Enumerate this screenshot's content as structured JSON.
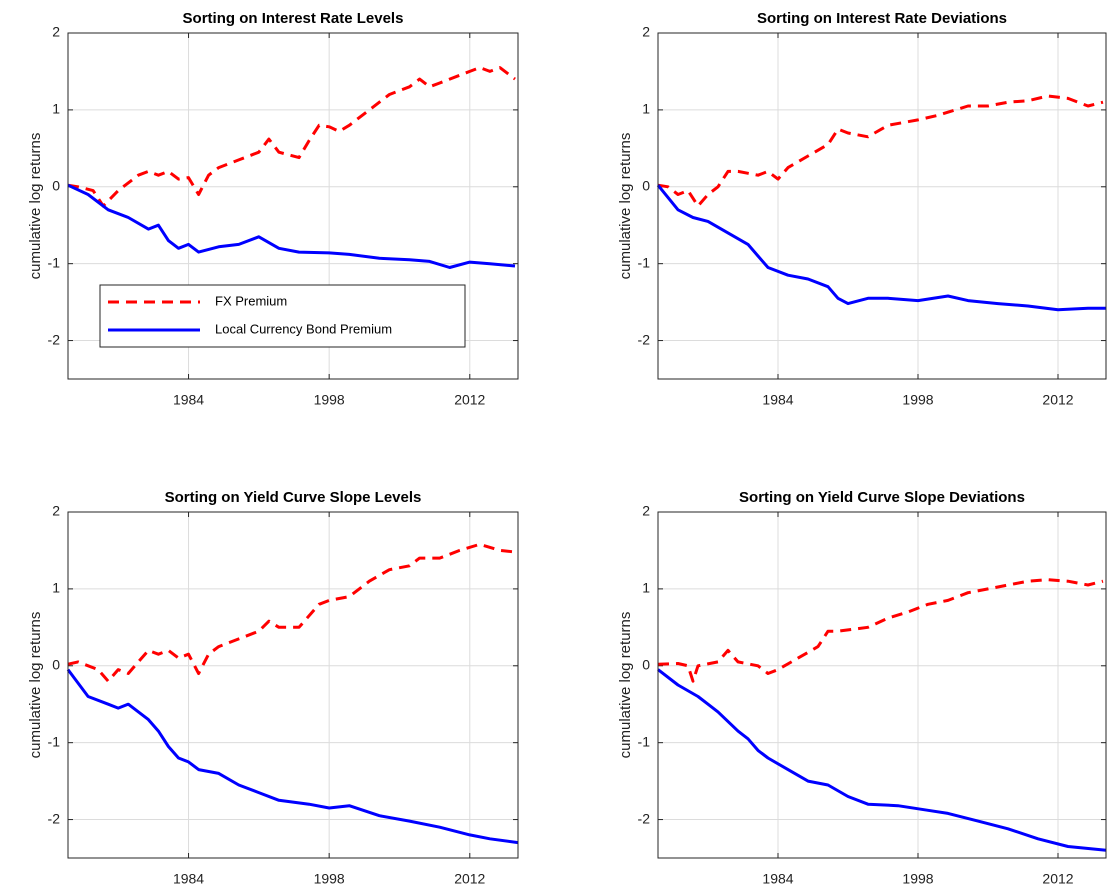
{
  "chart_data": [
    {
      "type": "line",
      "title": "Sorting on Interest Rate Levels",
      "y_label": "cumulative log returns",
      "xlim": [
        1972,
        2016.8
      ],
      "ylim": [
        -2.5,
        2
      ],
      "xticks": [
        1984,
        1998,
        2012
      ],
      "yticks": [
        -2,
        -1,
        0,
        1,
        2
      ],
      "grid": true,
      "legend": "lower left",
      "series": [
        {
          "name": "FX Premium",
          "color": "#ff0000",
          "dash": "dashed",
          "x": [
            1972,
            1973,
            1974.5,
            1975.5,
            1977,
            1979,
            1980,
            1981,
            1982,
            1983,
            1984,
            1985,
            1986,
            1987,
            1989,
            1991,
            1992,
            1993,
            1995,
            1996,
            1997,
            1998,
            1999,
            2000,
            2002,
            2004,
            2006,
            2007,
            2008,
            2009,
            2010,
            2012,
            2013,
            2014,
            2015,
            2016.5
          ],
          "values": [
            0.02,
            0.0,
            -0.05,
            -0.25,
            -0.05,
            0.15,
            0.2,
            0.15,
            0.2,
            0.1,
            0.12,
            -0.1,
            0.15,
            0.25,
            0.35,
            0.45,
            0.62,
            0.45,
            0.38,
            0.6,
            0.8,
            0.78,
            0.72,
            0.8,
            1.0,
            1.2,
            1.3,
            1.4,
            1.3,
            1.35,
            1.4,
            1.5,
            1.55,
            1.5,
            1.55,
            1.4
          ]
        },
        {
          "name": "Local Currency Bond Premium",
          "color": "#0000ff",
          "dash": "solid",
          "x": [
            1972,
            1974,
            1976,
            1978,
            1980,
            1981,
            1982,
            1983,
            1984,
            1985,
            1987,
            1989,
            1991,
            1993,
            1995,
            1998,
            2000,
            2003,
            2006,
            2008,
            2010,
            2012,
            2014,
            2016.5
          ],
          "values": [
            0.02,
            -0.1,
            -0.3,
            -0.4,
            -0.55,
            -0.5,
            -0.7,
            -0.8,
            -0.75,
            -0.85,
            -0.78,
            -0.75,
            -0.65,
            -0.8,
            -0.85,
            -0.86,
            -0.88,
            -0.93,
            -0.95,
            -0.97,
            -1.05,
            -0.98,
            -1.0,
            -1.03
          ]
        }
      ]
    },
    {
      "type": "line",
      "title": "Sorting on Interest Rate Deviations",
      "y_label": "cumulative log returns",
      "xlim": [
        1972,
        2016.8
      ],
      "ylim": [
        -2.5,
        2
      ],
      "xticks": [
        1984,
        1998,
        2012
      ],
      "yticks": [
        -2,
        -1,
        0,
        1,
        2
      ],
      "grid": true,
      "series": [
        {
          "color": "#ff0000",
          "dash": "dashed",
          "x": [
            1972,
            1973,
            1974,
            1975,
            1976,
            1977,
            1978,
            1979,
            1980,
            1982,
            1983,
            1984,
            1985,
            1987,
            1989,
            1990,
            1991,
            1993,
            1995,
            1998,
            2000,
            2003,
            2005,
            2007,
            2009,
            2011,
            2013,
            2015,
            2016.5
          ],
          "values": [
            0.02,
            0.0,
            -0.1,
            -0.05,
            -0.25,
            -0.1,
            0.0,
            0.2,
            0.2,
            0.15,
            0.2,
            0.1,
            0.25,
            0.4,
            0.55,
            0.75,
            0.7,
            0.65,
            0.8,
            0.87,
            0.93,
            1.05,
            1.05,
            1.1,
            1.12,
            1.18,
            1.15,
            1.05,
            1.1
          ]
        },
        {
          "color": "#0000ff",
          "dash": "solid",
          "x": [
            1972,
            1974,
            1975.5,
            1977,
            1979,
            1981,
            1982,
            1983,
            1985,
            1987,
            1989,
            1990,
            1991,
            1993,
            1995,
            1998,
            2001,
            2003,
            2006,
            2009,
            2012,
            2015,
            2016.8
          ],
          "values": [
            0.02,
            -0.3,
            -0.4,
            -0.45,
            -0.6,
            -0.75,
            -0.9,
            -1.05,
            -1.15,
            -1.2,
            -1.3,
            -1.45,
            -1.52,
            -1.45,
            -1.45,
            -1.48,
            -1.42,
            -1.48,
            -1.52,
            -1.55,
            -1.6,
            -1.58,
            -1.58
          ]
        }
      ]
    },
    {
      "type": "line",
      "title": "Sorting on Yield Curve Slope Levels",
      "y_label": "cumulative log returns",
      "xlim": [
        1972,
        2016.8
      ],
      "ylim": [
        -2.5,
        2
      ],
      "xticks": [
        1984,
        1998,
        2012
      ],
      "yticks": [
        -2,
        -1,
        0,
        1,
        2
      ],
      "grid": true,
      "series": [
        {
          "color": "#ff0000",
          "dash": "dashed",
          "x": [
            1972,
            1973,
            1975,
            1976,
            1977,
            1978,
            1979,
            1980,
            1981,
            1982,
            1983,
            1984,
            1985,
            1986,
            1987,
            1989,
            1991,
            1992,
            1993,
            1995,
            1997,
            1998,
            2000,
            2002,
            2004,
            2006,
            2007,
            2009,
            2011,
            2013,
            2015,
            2016.5
          ],
          "values": [
            0.02,
            0.05,
            -0.05,
            -0.2,
            -0.05,
            -0.1,
            0.05,
            0.2,
            0.15,
            0.2,
            0.1,
            0.15,
            -0.1,
            0.15,
            0.25,
            0.35,
            0.45,
            0.58,
            0.5,
            0.5,
            0.8,
            0.85,
            0.9,
            1.1,
            1.25,
            1.3,
            1.4,
            1.4,
            1.5,
            1.58,
            1.5,
            1.48
          ]
        },
        {
          "color": "#0000ff",
          "dash": "solid",
          "x": [
            1972,
            1974,
            1976,
            1977,
            1978,
            1980,
            1981,
            1982,
            1983,
            1984,
            1985,
            1987,
            1989,
            1991,
            1993,
            1996,
            1998,
            2000,
            2003,
            2006,
            2009,
            2012,
            2014,
            2016.8
          ],
          "values": [
            -0.05,
            -0.4,
            -0.5,
            -0.55,
            -0.5,
            -0.7,
            -0.85,
            -1.05,
            -1.2,
            -1.25,
            -1.35,
            -1.4,
            -1.55,
            -1.65,
            -1.75,
            -1.8,
            -1.85,
            -1.82,
            -1.95,
            -2.02,
            -2.1,
            -2.2,
            -2.25,
            -2.3
          ]
        }
      ]
    },
    {
      "type": "line",
      "title": "Sorting on Yield Curve Slope Deviations",
      "y_label": "cumulative log returns",
      "xlim": [
        1972,
        2016.8
      ],
      "ylim": [
        -2.5,
        2
      ],
      "xticks": [
        1984,
        1998,
        2012
      ],
      "yticks": [
        -2,
        -1,
        0,
        1,
        2
      ],
      "grid": true,
      "series": [
        {
          "color": "#ff0000",
          "dash": "dashed",
          "x": [
            1972,
            1974,
            1975,
            1975.5,
            1976,
            1978,
            1979,
            1980,
            1982,
            1983,
            1984,
            1986,
            1988,
            1989,
            1990,
            1993,
            1995,
            1997,
            1999,
            2001,
            2003,
            2005,
            2007,
            2009,
            2011,
            2013,
            2015,
            2016.5
          ],
          "values": [
            0.02,
            0.03,
            0.0,
            -0.2,
            0.0,
            0.05,
            0.2,
            0.05,
            0.0,
            -0.1,
            -0.05,
            0.1,
            0.25,
            0.45,
            0.45,
            0.5,
            0.62,
            0.7,
            0.8,
            0.85,
            0.95,
            1.0,
            1.05,
            1.1,
            1.12,
            1.1,
            1.05,
            1.1
          ]
        },
        {
          "color": "#0000ff",
          "dash": "solid",
          "x": [
            1972,
            1974,
            1976,
            1977,
            1978,
            1980,
            1981,
            1982,
            1983,
            1985,
            1987,
            1989,
            1991,
            1993,
            1996,
            1999,
            2001,
            2004,
            2007,
            2010,
            2013,
            2016.8
          ],
          "values": [
            -0.05,
            -0.25,
            -0.4,
            -0.5,
            -0.6,
            -0.85,
            -0.95,
            -1.1,
            -1.2,
            -1.35,
            -1.5,
            -1.55,
            -1.7,
            -1.8,
            -1.82,
            -1.88,
            -1.92,
            -2.02,
            -2.12,
            -2.25,
            -2.35,
            -2.4
          ]
        }
      ]
    }
  ]
}
